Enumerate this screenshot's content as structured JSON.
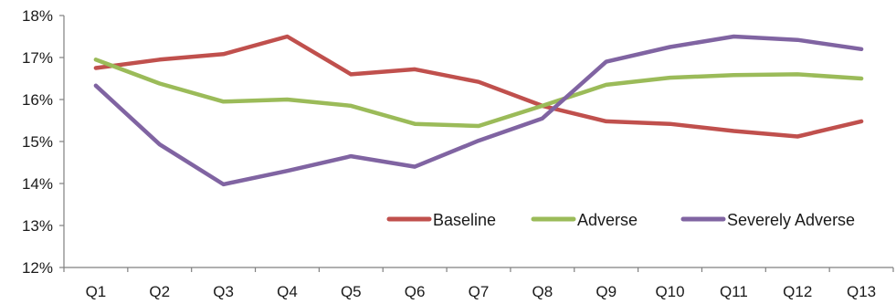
{
  "chart_data": {
    "type": "line",
    "title": "",
    "xlabel": "",
    "ylabel": "",
    "categories": [
      "Q1",
      "Q2",
      "Q3",
      "Q4",
      "Q5",
      "Q6",
      "Q7",
      "Q8",
      "Q9",
      "Q10",
      "Q11",
      "Q12",
      "Q13"
    ],
    "y_ticks": [
      "12%",
      "13%",
      "14%",
      "15%",
      "16%",
      "17%",
      "18%"
    ],
    "ylim": [
      12,
      18
    ],
    "y_unit": "%",
    "grid": false,
    "legend_position": "bottom-right, inside plot",
    "series": [
      {
        "name": "Baseline",
        "color": "#c0504d",
        "values": [
          16.75,
          16.95,
          17.08,
          17.5,
          16.6,
          16.72,
          16.42,
          15.85,
          15.48,
          15.42,
          15.25,
          15.12,
          15.48
        ]
      },
      {
        "name": "Adverse",
        "color": "#9bbb59",
        "values": [
          16.95,
          16.38,
          15.95,
          16.0,
          15.85,
          15.42,
          15.37,
          15.85,
          16.35,
          16.52,
          16.58,
          16.6,
          16.5
        ]
      },
      {
        "name": "Severely Adverse",
        "color": "#8064a2",
        "values": [
          16.33,
          14.93,
          13.98,
          14.3,
          14.65,
          14.4,
          15.02,
          15.55,
          16.9,
          17.25,
          17.5,
          17.42,
          17.2
        ]
      }
    ]
  }
}
